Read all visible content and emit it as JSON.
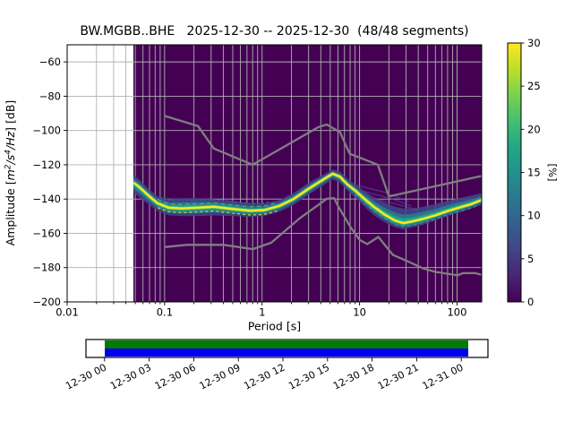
{
  "title": "BW.MGBB..BHE   2025-12-30 -- 2025-12-30  (48/48 segments)",
  "axes": {
    "xlabel": "Period [s]",
    "ylabel_text": "Amplitude [m²/s⁴/Hz] [dB]",
    "ylabel_parts": [
      {
        "t": "Amplitude [",
        "italic": false,
        "sup": false
      },
      {
        "t": "m",
        "italic": true,
        "sup": false
      },
      {
        "t": "2",
        "italic": true,
        "sup": true
      },
      {
        "t": "/s",
        "italic": true,
        "sup": false
      },
      {
        "t": "4",
        "italic": true,
        "sup": true
      },
      {
        "t": "/Hz",
        "italic": true,
        "sup": false
      },
      {
        "t": "] [dB]",
        "italic": false,
        "sup": false
      }
    ],
    "x_ticks": [
      {
        "v": 0.01,
        "label": "0.01"
      },
      {
        "v": 0.1,
        "label": "0.1"
      },
      {
        "v": 1,
        "label": "1"
      },
      {
        "v": 10,
        "label": "10"
      },
      {
        "v": 100,
        "label": "100"
      }
    ],
    "y_ticks": [
      {
        "v": -60,
        "label": "−60"
      },
      {
        "v": -80,
        "label": "−80"
      },
      {
        "v": -100,
        "label": "−100"
      },
      {
        "v": -120,
        "label": "−120"
      },
      {
        "v": -140,
        "label": "−140"
      },
      {
        "v": -160,
        "label": "−160"
      },
      {
        "v": -180,
        "label": "−180"
      },
      {
        "v": -200,
        "label": "−200"
      }
    ]
  },
  "colorbar": {
    "label": "[%]",
    "tick_values": [
      0,
      5,
      10,
      15,
      20,
      25,
      30
    ],
    "tick_labels": [
      "0",
      "5",
      "10",
      "15",
      "20",
      "25",
      "30"
    ],
    "min": 0,
    "max": 30,
    "colormap": "viridis",
    "gradient": [
      "#440154",
      "#482475",
      "#414487",
      "#355f8d",
      "#2a788e",
      "#21918c",
      "#22a884",
      "#44bf70",
      "#7ad151",
      "#bddf26",
      "#fde725"
    ]
  },
  "timeline": {
    "labels": [
      "12-30 00",
      "12-30 03",
      "12-30 06",
      "12-30 09",
      "12-30 12",
      "12-30 15",
      "12-30 18",
      "12-30 21",
      "12-31 00"
    ],
    "green_color": "#007c00",
    "blue_color": "#0000f0",
    "border_color": "#000000"
  },
  "chart_data": {
    "type": "heatmap",
    "title": "BW.MGBB..BHE   2025-12-30 -- 2025-12-30  (48/48 segments)",
    "xlabel": "Period [s]",
    "ylabel": "Amplitude [m²/s⁴/Hz] [dB]",
    "xscale": "log",
    "xlim": [
      0.01,
      179
    ],
    "ylim": [
      -200,
      -50
    ],
    "grid": true,
    "grid_color": "#b0b0b0",
    "background_color": "#440154",
    "noise_model_color": "#7f7f7f",
    "percent_range": [
      0,
      30
    ],
    "data_period_min": 0.0478,
    "band_columns": [
      "period_s",
      "upper_dB",
      "mode_dB",
      "lower_dB"
    ],
    "band": [
      [
        0.048,
        -126,
        -130.5,
        -136
      ],
      [
        0.055,
        -128.5,
        -133,
        -139
      ],
      [
        0.07,
        -134.5,
        -138.5,
        -143.5
      ],
      [
        0.085,
        -138.5,
        -142.5,
        -147
      ],
      [
        0.11,
        -140,
        -145,
        -149.5
      ],
      [
        0.15,
        -139.5,
        -145.5,
        -150
      ],
      [
        0.22,
        -139.5,
        -145,
        -150
      ],
      [
        0.32,
        -140,
        -144.5,
        -149.5
      ],
      [
        0.5,
        -141,
        -145.8,
        -150
      ],
      [
        0.75,
        -142.5,
        -146.8,
        -150.5
      ],
      [
        1.05,
        -142.5,
        -146.5,
        -150
      ],
      [
        1.5,
        -140.5,
        -144,
        -147.5
      ],
      [
        2.1,
        -136.5,
        -140,
        -143.5
      ],
      [
        3.0,
        -130.5,
        -134,
        -137.5
      ],
      [
        4.0,
        -126.5,
        -129.5,
        -133
      ],
      [
        5.3,
        -122.8,
        -125.2,
        -128.5
      ],
      [
        6.3,
        -124,
        -127,
        -130.5
      ],
      [
        7.5,
        -128,
        -131.5,
        -135
      ],
      [
        9.0,
        -131.5,
        -135,
        -139
      ],
      [
        11,
        -135,
        -139.5,
        -144
      ],
      [
        14,
        -139,
        -144.5,
        -149.5
      ],
      [
        18,
        -142,
        -149,
        -153.5
      ],
      [
        23,
        -144.5,
        -152.5,
        -156.5
      ],
      [
        28,
        -145.5,
        -154,
        -157.8
      ],
      [
        35,
        -145.5,
        -153,
        -156.5
      ],
      [
        45,
        -144.5,
        -151.5,
        -155
      ],
      [
        60,
        -143,
        -149.5,
        -152.5
      ],
      [
        80,
        -141,
        -147,
        -150
      ],
      [
        105,
        -139.5,
        -145,
        -148
      ],
      [
        140,
        -138,
        -143,
        -145.5
      ],
      [
        179,
        -136.5,
        -140.5,
        -143.5
      ]
    ],
    "noise_models": {
      "nhnm": [
        [
          0.1,
          -91.5
        ],
        [
          0.22,
          -97.4
        ],
        [
          0.32,
          -110.5
        ],
        [
          0.8,
          -120
        ],
        [
          3.8,
          -98
        ],
        [
          4.6,
          -96.5
        ],
        [
          6.3,
          -101
        ],
        [
          7.9,
          -113.5
        ],
        [
          15.4,
          -120
        ],
        [
          20,
          -138.5
        ],
        [
          179,
          -126.5
        ]
      ],
      "nlnm": [
        [
          0.1,
          -168
        ],
        [
          0.17,
          -166.7
        ],
        [
          0.4,
          -166.7
        ],
        [
          0.8,
          -169.2
        ],
        [
          1.24,
          -165.5
        ],
        [
          2.4,
          -151.5
        ],
        [
          4.3,
          -141.1
        ],
        [
          4.6,
          -139.8
        ],
        [
          5.5,
          -139.5
        ],
        [
          6,
          -144
        ],
        [
          8,
          -156
        ],
        [
          10,
          -163.8
        ],
        [
          12,
          -166.3
        ],
        [
          15.6,
          -162.1
        ],
        [
          21.9,
          -172.5
        ],
        [
          31.6,
          -176.5
        ],
        [
          45,
          -180.5
        ],
        [
          60,
          -182.5
        ],
        [
          101,
          -184.5
        ],
        [
          115,
          -183.2
        ],
        [
          154,
          -183.2
        ],
        [
          179,
          -184.2
        ]
      ]
    },
    "faint_streaks": [
      [
        [
          9,
          -131.8
        ],
        [
          18,
          -136
        ],
        [
          32,
          -141.5
        ]
      ],
      [
        [
          11,
          -135.5
        ],
        [
          22,
          -140
        ],
        [
          34,
          -144
        ]
      ],
      [
        [
          14,
          -139.5
        ],
        [
          28,
          -144
        ],
        [
          40,
          -146.5
        ]
      ]
    ],
    "striations": [
      {
        "range": [
          0.085,
          1.45
        ],
        "offset": -2.5,
        "color": "#bddf26",
        "dash": "3 3",
        "width": 1.3,
        "opacity": 0.95
      },
      {
        "range": [
          0.085,
          1.45
        ],
        "offset": 2.3,
        "color": "#44bf70",
        "dash": "4 4",
        "width": 1.3,
        "opacity": 0.85
      },
      {
        "range": [
          0.09,
          1.2
        ],
        "offset": 4.2,
        "color": "#2a788e",
        "dash": "2 3",
        "width": 1.2,
        "opacity": 0.8
      },
      {
        "range": [
          9,
          170
        ],
        "offset": -2.2,
        "color": "#44bf70",
        "dash": "4 3",
        "width": 1.2,
        "opacity": 0.6
      },
      {
        "range": [
          12,
          60
        ],
        "offset": 3.0,
        "color": "#2a788e",
        "dash": "3 3",
        "width": 1.2,
        "opacity": 0.7
      }
    ],
    "band_layer_colors": {
      "outer": "#414487",
      "mid": "#2a788e",
      "inner": "#22a884",
      "fringe": "#7ad151",
      "mode": "#fde725"
    }
  }
}
